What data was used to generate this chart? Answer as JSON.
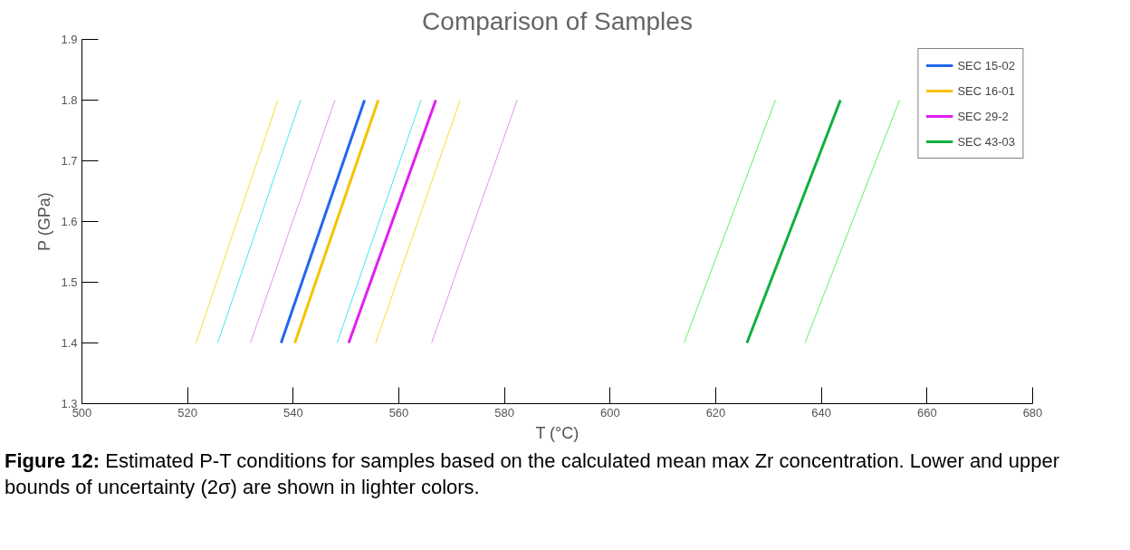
{
  "chart_data": {
    "type": "line",
    "title": "Comparison of Samples",
    "xlabel": "T (°C)",
    "ylabel": "P (GPa)",
    "xlim": [
      500,
      680
    ],
    "xticks": [
      500,
      520,
      540,
      560,
      580,
      600,
      620,
      640,
      660,
      680
    ],
    "ylim": [
      1.3,
      1.9
    ],
    "yticks": [
      1.3,
      1.4,
      1.5,
      1.6,
      1.7,
      1.8,
      1.9
    ],
    "grid": false,
    "legend": "top right",
    "marker": "none",
    "line_style": "solid",
    "series": [
      {
        "color": "#f5dc30",
        "x": [
          521.6,
          537.1
        ],
        "values": [
          1.4,
          1.8
        ]
      },
      {
        "color": "#40e8f0",
        "x": [
          525.7,
          541.4
        ],
        "values": [
          1.4,
          1.8
        ]
      },
      {
        "color": "#e890f0",
        "x": [
          531.9,
          547.9
        ],
        "values": [
          1.4,
          1.8
        ]
      },
      {
        "color": "#40e8f0",
        "x": [
          548.3,
          564.2
        ],
        "values": [
          1.4,
          1.8
        ]
      },
      {
        "color": "#f5dc30",
        "x": [
          555.6,
          571.6
        ],
        "values": [
          1.4,
          1.8
        ]
      },
      {
        "color": "#e890f0",
        "x": [
          566.2,
          582.4
        ],
        "values": [
          1.4,
          1.8
        ]
      },
      {
        "color": "#60f060",
        "x": [
          614.0,
          631.3
        ],
        "values": [
          1.4,
          1.8
        ]
      },
      {
        "color": "#60f060",
        "x": [
          636.9,
          654.8
        ],
        "values": [
          1.4,
          1.8
        ]
      },
      {
        "name": "SEC 15-02",
        "color": "#2266ee",
        "x": [
          537.7,
          553.5
        ],
        "values": [
          1.4,
          1.8
        ]
      },
      {
        "name": "SEC 16-01",
        "color": "#f5c400",
        "x": [
          540.3,
          556.1
        ],
        "values": [
          1.4,
          1.8
        ]
      },
      {
        "name": "SEC 29-2",
        "color": "#e020f0",
        "x": [
          550.5,
          567.0
        ],
        "values": [
          1.4,
          1.8
        ]
      },
      {
        "name": "SEC 43-03",
        "color": "#10b040",
        "x": [
          625.9,
          643.6
        ],
        "values": [
          1.4,
          1.8
        ]
      }
    ],
    "annotations": [
      "Figure 12:",
      "Estimated P-T conditions for samples based on the calculated mean max Zr concentration. Lower and upper bounds of uncertainty (2σ) are shown in lighter colors."
    ]
  }
}
